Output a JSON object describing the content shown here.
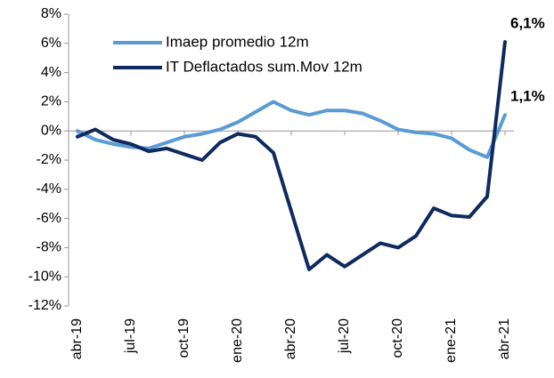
{
  "chart_data": {
    "type": "line",
    "categories": [
      "abr-19",
      null,
      null,
      "jul-19",
      null,
      null,
      "oct-19",
      null,
      null,
      "ene-20",
      null,
      null,
      "abr-20",
      null,
      null,
      "jul-20",
      null,
      null,
      "oct-20",
      null,
      null,
      "ene-21",
      null,
      null,
      "abr-21"
    ],
    "series": [
      {
        "name": "Imaep promedio 12m",
        "color": "#5b9bd5",
        "values": [
          0.0,
          -0.6,
          -0.9,
          -1.1,
          -1.2,
          -0.8,
          -0.4,
          -0.2,
          0.1,
          0.6,
          1.3,
          2.0,
          1.4,
          1.1,
          1.4,
          1.4,
          1.2,
          0.7,
          0.1,
          -0.1,
          -0.2,
          -0.5,
          -1.3,
          -1.8,
          1.1
        ]
      },
      {
        "name": "IT Deflactados sum.Mov 12m",
        "color": "#0f2a5e",
        "values": [
          -0.4,
          0.1,
          -0.6,
          -0.9,
          -1.4,
          -1.2,
          -1.6,
          -2.0,
          -0.8,
          -0.2,
          -0.4,
          -1.5,
          -5.5,
          -9.5,
          -8.5,
          -9.3,
          -8.5,
          -7.7,
          -8.0,
          -7.2,
          -5.3,
          -5.8,
          -5.9,
          -4.5,
          6.1
        ]
      }
    ],
    "annotations": [
      "1,1%",
      "6,1%"
    ],
    "ylim": [
      -12,
      8
    ],
    "yticks": [
      {
        "value": -12,
        "label": "-12%"
      },
      {
        "value": -10,
        "label": "-10%"
      },
      {
        "value": -8,
        "label": "-8%"
      },
      {
        "value": -6,
        "label": "-6%"
      },
      {
        "value": -4,
        "label": "-4%"
      },
      {
        "value": -2,
        "label": "-2%"
      },
      {
        "value": 0,
        "label": "0%"
      },
      {
        "value": 2,
        "label": "2%"
      },
      {
        "value": 4,
        "label": "4%"
      },
      {
        "value": 6,
        "label": "6%"
      },
      {
        "value": 8,
        "label": "8%"
      }
    ],
    "legend": "upper-left",
    "grid": false
  }
}
